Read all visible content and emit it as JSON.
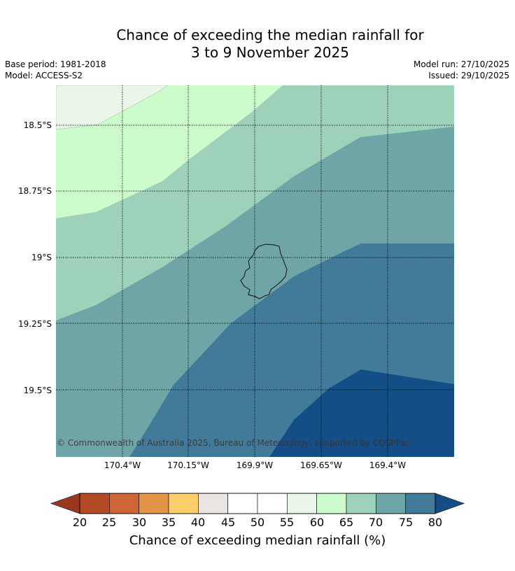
{
  "title_line1": "Chance of exceeding the median rainfall for",
  "title_line2": "3 to 9 November 2025",
  "base_period": "Base period: 1981-2018",
  "model": "Model: ACCESS-S2",
  "model_run": "Model run: 27/10/2025",
  "issued": "Issued: 29/10/2025",
  "lat_ticks": [
    "18.5°S",
    "18.75°S",
    "19°S",
    "19.25°S",
    "19.5°S"
  ],
  "lon_ticks": [
    "170.4°W",
    "170.15°W",
    "169.9°W",
    "169.65°W",
    "169.4°W"
  ],
  "copyright": "© Commonwealth of Australia 2025, Bureau of Meteorology, supported by COSPPac",
  "colorbar": {
    "label": "Chance of exceeding median rainfall (%)",
    "ticks": [
      "20",
      "25",
      "30",
      "35",
      "40",
      "45",
      "50",
      "55",
      "60",
      "65",
      "70",
      "75",
      "80"
    ],
    "colors": [
      "#b34a26",
      "#cd6634",
      "#e29546",
      "#fdce69",
      "#eae5e3",
      "#ffffff",
      "#ffffff",
      "#e9f6e9",
      "#ccfccc",
      "#9dd1b9",
      "#6fa5a7",
      "#427b9a"
    ],
    "under_color": "#98381f",
    "over_color": "#144e87"
  },
  "chart_data": {
    "type": "contour_map",
    "variable": "Chance of exceeding median rainfall (%)",
    "lat_range": [
      "18.38°S",
      "19.78°S"
    ],
    "lon_range": [
      "170.65°W",
      "169.15°W"
    ],
    "levels": [
      55,
      60,
      65,
      70,
      75,
      80
    ],
    "trend": "Probabilities increase from ~55-60% in the north-west to >80% in the south-east; the island near 169.87°W, 19.05°S lies in the 70-75% band."
  }
}
